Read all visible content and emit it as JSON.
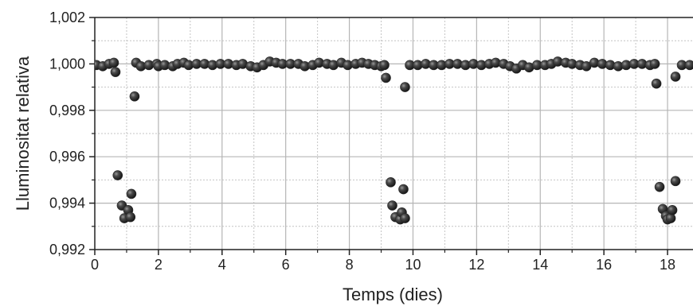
{
  "chart_data": {
    "type": "scatter",
    "title": "",
    "xlabel": "Temps (dies)",
    "ylabel": "Lluminositat relativa",
    "xlim": [
      0,
      18.8
    ],
    "ylim": [
      0.992,
      1.002
    ],
    "x_ticks": [
      0,
      2,
      4,
      6,
      8,
      10,
      12,
      14,
      16,
      18
    ],
    "y_ticks": [
      0.992,
      0.994,
      0.996,
      0.998,
      1.0,
      1.002
    ],
    "x_tick_labels": [
      "0",
      "2",
      "4",
      "6",
      "8",
      "10",
      "12",
      "14",
      "16",
      "18"
    ],
    "y_tick_labels": [
      "0,992",
      "0,994",
      "0,996",
      "0,998",
      "1,000",
      "1,002"
    ],
    "grid": true,
    "marker_color": "#2a2a2a",
    "points": [
      {
        "x": 0.05,
        "y": 0.99995
      },
      {
        "x": 0.25,
        "y": 0.9999
      },
      {
        "x": 0.45,
        "y": 1.0
      },
      {
        "x": 0.6,
        "y": 1.00005
      },
      {
        "x": 0.65,
        "y": 0.99965
      },
      {
        "x": 0.72,
        "y": 0.9952
      },
      {
        "x": 0.85,
        "y": 0.9939
      },
      {
        "x": 0.93,
        "y": 0.99335
      },
      {
        "x": 1.05,
        "y": 0.9937
      },
      {
        "x": 1.12,
        "y": 0.9934
      },
      {
        "x": 1.15,
        "y": 0.9944
      },
      {
        "x": 1.25,
        "y": 0.9986
      },
      {
        "x": 1.3,
        "y": 1.00005
      },
      {
        "x": 1.45,
        "y": 0.9999
      },
      {
        "x": 1.7,
        "y": 0.99995
      },
      {
        "x": 1.95,
        "y": 1.0
      },
      {
        "x": 2.0,
        "y": 0.9999
      },
      {
        "x": 2.2,
        "y": 0.99995
      },
      {
        "x": 2.45,
        "y": 0.9999
      },
      {
        "x": 2.6,
        "y": 1.0
      },
      {
        "x": 2.8,
        "y": 1.00005
      },
      {
        "x": 2.95,
        "y": 0.99995
      },
      {
        "x": 3.2,
        "y": 1.0
      },
      {
        "x": 3.45,
        "y": 1.0
      },
      {
        "x": 3.7,
        "y": 0.99995
      },
      {
        "x": 3.95,
        "y": 1.0
      },
      {
        "x": 4.2,
        "y": 1.0
      },
      {
        "x": 4.45,
        "y": 0.99995
      },
      {
        "x": 4.65,
        "y": 1.0
      },
      {
        "x": 4.9,
        "y": 0.9999
      },
      {
        "x": 5.1,
        "y": 0.99985
      },
      {
        "x": 5.3,
        "y": 0.99995
      },
      {
        "x": 5.5,
        "y": 1.0001
      },
      {
        "x": 5.7,
        "y": 1.00005
      },
      {
        "x": 5.9,
        "y": 1.0
      },
      {
        "x": 6.15,
        "y": 1.0
      },
      {
        "x": 6.4,
        "y": 1.0
      },
      {
        "x": 6.6,
        "y": 0.9999
      },
      {
        "x": 6.85,
        "y": 0.99995
      },
      {
        "x": 7.05,
        "y": 1.00005
      },
      {
        "x": 7.3,
        "y": 1.0
      },
      {
        "x": 7.5,
        "y": 0.99995
      },
      {
        "x": 7.75,
        "y": 1.00005
      },
      {
        "x": 7.95,
        "y": 0.99995
      },
      {
        "x": 8.2,
        "y": 1.0
      },
      {
        "x": 8.4,
        "y": 1.00005
      },
      {
        "x": 8.6,
        "y": 1.0
      },
      {
        "x": 8.8,
        "y": 0.99995
      },
      {
        "x": 9.0,
        "y": 0.9999
      },
      {
        "x": 9.1,
        "y": 0.99995
      },
      {
        "x": 9.15,
        "y": 0.9994
      },
      {
        "x": 9.3,
        "y": 0.9949
      },
      {
        "x": 9.35,
        "y": 0.9939
      },
      {
        "x": 9.45,
        "y": 0.9934
      },
      {
        "x": 9.6,
        "y": 0.9933
      },
      {
        "x": 9.65,
        "y": 0.9936
      },
      {
        "x": 9.7,
        "y": 0.9946
      },
      {
        "x": 9.75,
        "y": 0.99335
      },
      {
        "x": 9.75,
        "y": 0.999
      },
      {
        "x": 9.9,
        "y": 0.99995
      },
      {
        "x": 10.15,
        "y": 0.99995
      },
      {
        "x": 10.4,
        "y": 1.0
      },
      {
        "x": 10.65,
        "y": 0.99995
      },
      {
        "x": 10.9,
        "y": 0.99995
      },
      {
        "x": 11.15,
        "y": 1.0
      },
      {
        "x": 11.4,
        "y": 1.0
      },
      {
        "x": 11.65,
        "y": 0.99995
      },
      {
        "x": 11.9,
        "y": 1.0
      },
      {
        "x": 12.15,
        "y": 0.99995
      },
      {
        "x": 12.4,
        "y": 1.0
      },
      {
        "x": 12.6,
        "y": 1.00005
      },
      {
        "x": 12.85,
        "y": 1.0
      },
      {
        "x": 13.05,
        "y": 0.9999
      },
      {
        "x": 13.25,
        "y": 0.9998
      },
      {
        "x": 13.45,
        "y": 0.99995
      },
      {
        "x": 13.65,
        "y": 0.99985
      },
      {
        "x": 13.9,
        "y": 0.99995
      },
      {
        "x": 14.15,
        "y": 0.99995
      },
      {
        "x": 14.35,
        "y": 1.0
      },
      {
        "x": 14.55,
        "y": 1.0001
      },
      {
        "x": 14.8,
        "y": 1.00005
      },
      {
        "x": 15.0,
        "y": 1.0
      },
      {
        "x": 15.25,
        "y": 0.99995
      },
      {
        "x": 15.45,
        "y": 0.9999
      },
      {
        "x": 15.7,
        "y": 1.00005
      },
      {
        "x": 15.95,
        "y": 1.0
      },
      {
        "x": 16.2,
        "y": 0.99995
      },
      {
        "x": 16.45,
        "y": 0.9999
      },
      {
        "x": 16.7,
        "y": 0.99995
      },
      {
        "x": 16.95,
        "y": 1.0
      },
      {
        "x": 17.2,
        "y": 1.0
      },
      {
        "x": 17.45,
        "y": 0.99995
      },
      {
        "x": 17.6,
        "y": 1.0
      },
      {
        "x": 17.65,
        "y": 0.99915
      },
      {
        "x": 17.75,
        "y": 0.9947
      },
      {
        "x": 17.85,
        "y": 0.99375
      },
      {
        "x": 17.95,
        "y": 0.99345
      },
      {
        "x": 18.0,
        "y": 0.9933
      },
      {
        "x": 18.1,
        "y": 0.99335
      },
      {
        "x": 18.15,
        "y": 0.9937
      },
      {
        "x": 18.25,
        "y": 0.99495
      },
      {
        "x": 18.25,
        "y": 0.99945
      },
      {
        "x": 18.45,
        "y": 0.99995
      },
      {
        "x": 18.7,
        "y": 0.99995
      }
    ]
  }
}
